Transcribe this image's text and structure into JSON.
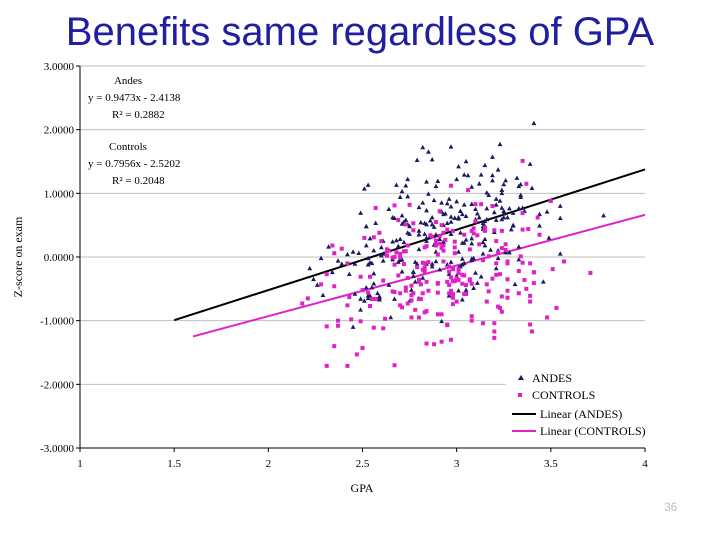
{
  "slide": {
    "title": "Benefits same regardless of GPA",
    "page_number": "36"
  },
  "chart_data": {
    "type": "scatter",
    "title": "",
    "xlabel": "GPA",
    "ylabel": "Z-score on exam",
    "xlim": [
      1,
      4
    ],
    "ylim": [
      -3,
      3
    ],
    "x_ticks": [
      "1",
      "1.5",
      "2",
      "2.5",
      "3",
      "3.5",
      "4"
    ],
    "y_ticks": [
      "-3.0000",
      "-2.0000",
      "-1.0000",
      "0.0000",
      "1.0000",
      "2.0000",
      "3.0000"
    ],
    "grid": "horizontal",
    "legend_position": "bottom-right",
    "annotations": [
      {
        "group": "Andes",
        "equation": "y = 0.9473x - 2.4138",
        "r2": "R² = 0.2882"
      },
      {
        "group": "Controls",
        "equation": "y = 0.7956x - 2.5202",
        "r2": "R² = 0.2048"
      }
    ],
    "series": [
      {
        "name": "ANDES",
        "marker": "triangle",
        "color": "#1a1a5e",
        "points": []
      },
      {
        "name": "CONTROLS",
        "marker": "square",
        "color": "#e020c8",
        "points": []
      }
    ],
    "trendlines": [
      {
        "name": "Linear (ANDES)",
        "color": "#000000",
        "slope": 0.9473,
        "intercept": -2.4138,
        "x_range": [
          1.5,
          4
        ]
      },
      {
        "name": "Linear (CONTROLS)",
        "color": "#e020c8",
        "slope": 0.7956,
        "intercept": -2.5202,
        "x_range": [
          1.6,
          4
        ]
      }
    ]
  }
}
